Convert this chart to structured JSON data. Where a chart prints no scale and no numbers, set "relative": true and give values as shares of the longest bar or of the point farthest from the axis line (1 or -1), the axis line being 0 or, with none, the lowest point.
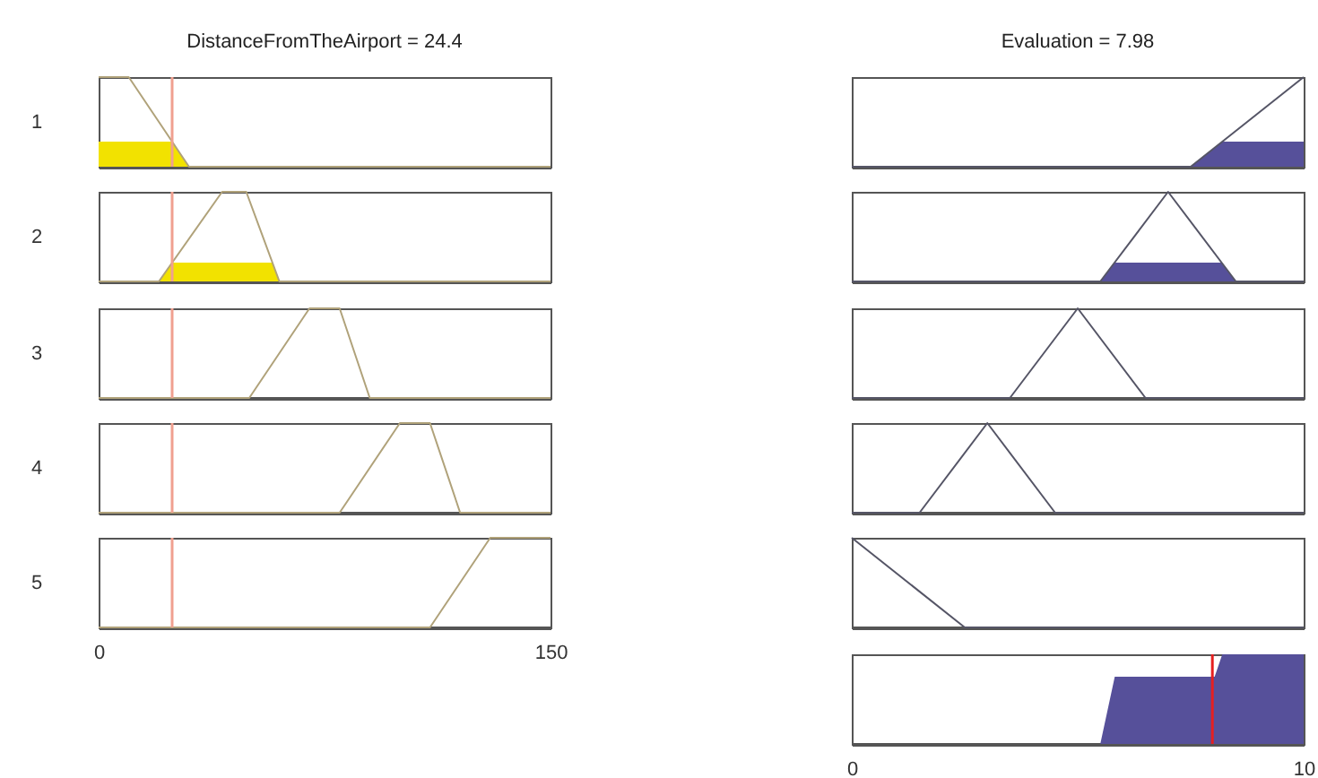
{
  "chart_data": [
    {
      "type": "line",
      "title": "DistanceFromTheAirport = 24.4",
      "ylabel": "1",
      "relative": true,
      "xlim": [
        0,
        150
      ],
      "xticks": [
        0,
        150
      ],
      "tick_labels": false,
      "ref_lines": [
        {
          "axis": "x",
          "value": 24.4,
          "color": "#f0a090"
        }
      ],
      "series": [
        {
          "type": "line",
          "color": "#b0a27a",
          "x": [
            0,
            10,
            30,
            150
          ],
          "values": [
            1,
            1,
            0,
            0
          ]
        },
        {
          "type": "area",
          "color": "#f2e200",
          "x": [
            0,
            24.4,
            30
          ],
          "values": [
            0.28,
            0.28,
            0
          ]
        }
      ]
    },
    {
      "type": "line",
      "title": "Evaluation = 7.98",
      "relative": true,
      "xlim": [
        0,
        10
      ],
      "xticks": [
        0,
        10
      ],
      "tick_labels": false,
      "series": [
        {
          "type": "line",
          "color": "#555566",
          "x": [
            0,
            7.5,
            10
          ],
          "values": [
            0,
            0,
            1
          ]
        },
        {
          "type": "area",
          "color": "#56509a",
          "x": [
            7.5,
            8.2,
            10
          ],
          "values": [
            0,
            0.28,
            0.28
          ]
        }
      ]
    },
    {
      "type": "line",
      "ylabel": "2",
      "relative": true,
      "xlim": [
        0,
        150
      ],
      "xticks": [
        0,
        150
      ],
      "tick_labels": false,
      "ref_lines": [
        {
          "axis": "x",
          "value": 24.4,
          "color": "#f0a090"
        }
      ],
      "series": [
        {
          "type": "line",
          "color": "#b0a27a",
          "x": [
            0,
            20,
            41,
            49,
            60,
            150
          ],
          "values": [
            0,
            0,
            1,
            1,
            0,
            0
          ]
        },
        {
          "type": "area",
          "color": "#f2e200",
          "x": [
            20,
            24.4,
            57.7,
            60
          ],
          "values": [
            0,
            0.21,
            0.21,
            0
          ]
        }
      ]
    },
    {
      "type": "line",
      "relative": true,
      "xlim": [
        0,
        10
      ],
      "xticks": [
        0,
        10
      ],
      "tick_labels": false,
      "series": [
        {
          "type": "line",
          "color": "#555566",
          "x": [
            0,
            5.5,
            7,
            8.5,
            10
          ],
          "values": [
            0,
            0,
            1,
            0,
            0
          ]
        },
        {
          "type": "area",
          "color": "#56509a",
          "x": [
            5.5,
            5.82,
            8.18,
            8.5
          ],
          "values": [
            0,
            0.21,
            0.21,
            0
          ]
        }
      ]
    },
    {
      "type": "line",
      "ylabel": "3",
      "relative": true,
      "xlim": [
        0,
        150
      ],
      "xticks": [
        0,
        150
      ],
      "tick_labels": false,
      "ref_lines": [
        {
          "axis": "x",
          "value": 24.4,
          "color": "#f0a090"
        }
      ],
      "series": [
        {
          "type": "line",
          "color": "#b0a27a",
          "x": [
            0,
            50,
            70,
            80,
            90,
            150
          ],
          "values": [
            0,
            0,
            1,
            1,
            0,
            0
          ]
        }
      ]
    },
    {
      "type": "line",
      "relative": true,
      "xlim": [
        0,
        10
      ],
      "xticks": [
        0,
        10
      ],
      "tick_labels": false,
      "series": [
        {
          "type": "line",
          "color": "#555566",
          "x": [
            0,
            3.5,
            5,
            6.5,
            10
          ],
          "values": [
            0,
            0,
            1,
            0,
            0
          ]
        }
      ]
    },
    {
      "type": "line",
      "ylabel": "4",
      "relative": true,
      "xlim": [
        0,
        150
      ],
      "xticks": [
        0,
        150
      ],
      "tick_labels": false,
      "ref_lines": [
        {
          "axis": "x",
          "value": 24.4,
          "color": "#f0a090"
        }
      ],
      "series": [
        {
          "type": "line",
          "color": "#b0a27a",
          "x": [
            0,
            80,
            100,
            110,
            120,
            150
          ],
          "values": [
            0,
            0,
            1,
            1,
            0,
            0
          ]
        }
      ]
    },
    {
      "type": "line",
      "relative": true,
      "xlim": [
        0,
        10
      ],
      "xticks": [
        0,
        10
      ],
      "tick_labels": false,
      "series": [
        {
          "type": "line",
          "color": "#555566",
          "x": [
            0,
            1.5,
            3,
            4.5,
            10
          ],
          "values": [
            0,
            0,
            1,
            0,
            0
          ]
        }
      ]
    },
    {
      "type": "line",
      "ylabel": "5",
      "relative": true,
      "xlim": [
        0,
        150
      ],
      "xticks": [
        0,
        150
      ],
      "tick_labels": "x",
      "ref_lines": [
        {
          "axis": "x",
          "value": 24.4,
          "color": "#f0a090"
        }
      ],
      "series": [
        {
          "type": "line",
          "color": "#b0a27a",
          "x": [
            0,
            110,
            130,
            150
          ],
          "values": [
            0,
            0,
            1,
            1
          ]
        }
      ]
    },
    {
      "type": "line",
      "relative": true,
      "xlim": [
        0,
        10
      ],
      "xticks": [
        0,
        10
      ],
      "tick_labels": false,
      "series": [
        {
          "type": "line",
          "color": "#555566",
          "x": [
            0,
            2.5,
            10
          ],
          "values": [
            1,
            0,
            0
          ]
        }
      ]
    },
    {
      "type": "line",
      "relative": true,
      "xlim": [
        0,
        10
      ],
      "xticks": [
        0,
        10
      ],
      "tick_labels": "x",
      "ref_lines": [
        {
          "axis": "x",
          "value": 7.98,
          "color": "#e62020"
        }
      ],
      "series": [
        {
          "type": "area",
          "color": "#56509a",
          "x": [
            0,
            5.5,
            5.82,
            8.03,
            8.2,
            10
          ],
          "values": [
            0,
            0,
            0.75,
            0.75,
            1,
            1
          ]
        }
      ]
    }
  ]
}
